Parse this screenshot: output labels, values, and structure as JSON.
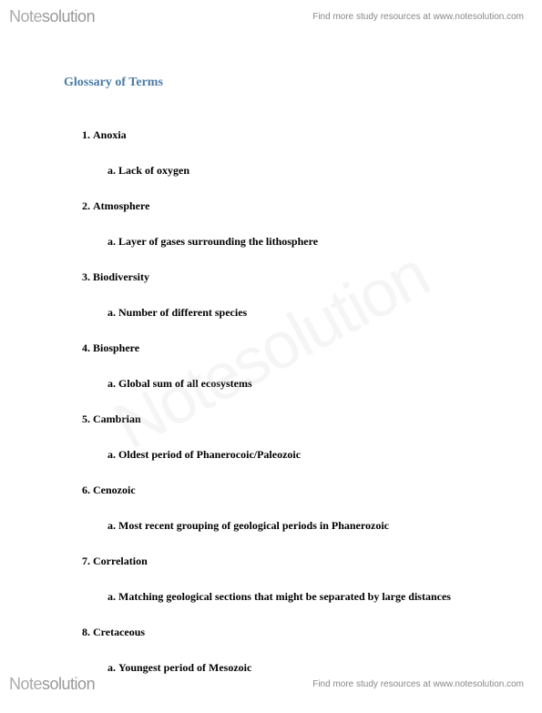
{
  "brand": {
    "logo_light": "Note",
    "logo_bold": "solution"
  },
  "header": {
    "tagline": "Find more study resources at www.notesolution.com"
  },
  "footer": {
    "tagline": "Find more study resources at www.notesolution.com"
  },
  "watermark": {
    "text": "Notesolution"
  },
  "document": {
    "title": "Glossary of Terms",
    "title_color": "#4a7ba6",
    "title_fontsize": 14,
    "body_fontsize": 12,
    "body_color": "#000000",
    "background_color": "#ffffff",
    "terms": [
      {
        "term": "Anoxia",
        "definition": "Lack of oxygen"
      },
      {
        "term": "Atmosphere",
        "definition": "Layer of gases surrounding the lithosphere"
      },
      {
        "term": "Biodiversity",
        "definition": "Number of different species"
      },
      {
        "term": "Biosphere",
        "definition": "Global sum of all ecosystems"
      },
      {
        "term": "Cambrian",
        "definition": "Oldest period of Phanerocoic/Paleozoic"
      },
      {
        "term": "Cenozoic",
        "definition": "Most recent grouping of geological periods in Phanerozoic"
      },
      {
        "term": "Correlation",
        "definition": "Matching geological sections that might be separated by large distances"
      },
      {
        "term": "Cretaceous",
        "definition": "Youngest period of Mesozoic"
      }
    ]
  }
}
